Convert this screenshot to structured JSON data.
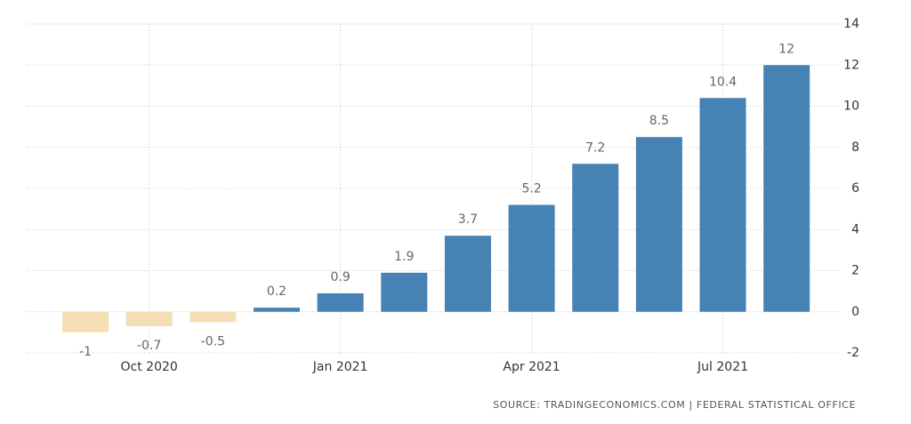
{
  "chart_data": {
    "type": "bar",
    "categories": [
      null,
      "Oct 2020",
      null,
      null,
      "Jan 2021",
      null,
      null,
      "Apr 2021",
      null,
      null,
      "Jul 2021",
      null
    ],
    "values": [
      -1,
      -0.7,
      -0.5,
      0.2,
      0.9,
      1.9,
      3.7,
      5.2,
      7.2,
      8.5,
      10.4,
      12
    ],
    "positive_color": "#4682b4",
    "negative_color": "#f5deb3",
    "ylim": [
      -2,
      14
    ],
    "yticks": [
      -2,
      0,
      2,
      4,
      6,
      8,
      10,
      12,
      14
    ],
    "grid": true,
    "source": "SOURCE: TRADINGECONOMICS.COM | FEDERAL STATISTICAL OFFICE"
  }
}
